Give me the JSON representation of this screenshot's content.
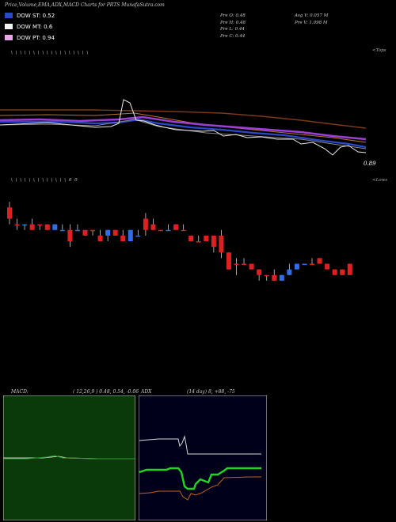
{
  "title": "Price,Volume,EMA,ADX,MACD Charts for PRTS MunafaSutra.com",
  "legend": [
    {
      "label": "DOW ST: 0.52",
      "color": "#2a49c8"
    },
    {
      "label": "DOW MT: 0.6",
      "color": "#f2f2f2"
    },
    {
      "label": "DOW PT: 0.94",
      "color": "#e9a6e6"
    }
  ],
  "ohlc": {
    "open": "Pre  O: 0.48",
    "high": "Pre  H: 0.48",
    "low": "Pre  L: 0.44",
    "close": "Pre  C: 0.44",
    "avg_volume": "Avg V: 0.057 M",
    "prev_volume": "Pre  V: 1.098  M"
  },
  "top_label": "<Tops",
  "low_label": "<Lows",
  "price_label": "0.89",
  "tops_marks": "\\  \\  \\  \\  \\  \\  \\  \\  \\  \\  \\  \\  \\  \\  \\  \\  \\  \\",
  "lows_marks": "\\  \\  \\  \\  \\  \\  \\  \\  \\  \\  \\  \\  \\  0  0",
  "macd": {
    "title": "MACD:",
    "params": "( 12,26,9 ) 0.48,  0.54,  -0.06"
  },
  "adx": {
    "title": "ADX",
    "params": "(14  day) 8,  +88,  -75"
  },
  "colors": {
    "bull": "#2f6ee8",
    "bear": "#e02020",
    "macd_bg": "#0a3a0a",
    "adx_bg": "#00001a"
  },
  "chart_data": {
    "type": "candlestick",
    "candles": [
      {
        "o": 0.52,
        "h": 0.53,
        "l": 0.49,
        "c": 0.5,
        "dir": "down"
      },
      {
        "o": 0.49,
        "h": 0.5,
        "l": 0.48,
        "c": 0.49,
        "dir": "down"
      },
      {
        "o": 0.49,
        "h": 0.49,
        "l": 0.48,
        "c": 0.49,
        "dir": "up"
      },
      {
        "o": 0.49,
        "h": 0.5,
        "l": 0.48,
        "c": 0.48,
        "dir": "down"
      },
      {
        "o": 0.49,
        "h": 0.49,
        "l": 0.48,
        "c": 0.49,
        "dir": "down"
      },
      {
        "o": 0.48,
        "h": 0.49,
        "l": 0.48,
        "c": 0.49,
        "dir": "down"
      },
      {
        "o": 0.49,
        "h": 0.49,
        "l": 0.48,
        "c": 0.48,
        "dir": "up"
      },
      {
        "o": 0.48,
        "h": 0.49,
        "l": 0.48,
        "c": 0.48,
        "dir": "up"
      },
      {
        "o": 0.48,
        "h": 0.49,
        "l": 0.45,
        "c": 0.46,
        "dir": "down"
      },
      {
        "o": 0.48,
        "h": 0.49,
        "l": 0.48,
        "c": 0.48,
        "dir": "up"
      },
      {
        "o": 0.48,
        "h": 0.48,
        "l": 0.47,
        "c": 0.47,
        "dir": "down"
      },
      {
        "o": 0.48,
        "h": 0.48,
        "l": 0.47,
        "c": 0.48,
        "dir": "down"
      },
      {
        "o": 0.47,
        "h": 0.48,
        "l": 0.46,
        "c": 0.46,
        "dir": "down"
      },
      {
        "o": 0.47,
        "h": 0.48,
        "l": 0.46,
        "c": 0.48,
        "dir": "up"
      },
      {
        "o": 0.48,
        "h": 0.48,
        "l": 0.47,
        "c": 0.47,
        "dir": "down"
      },
      {
        "o": 0.47,
        "h": 0.48,
        "l": 0.46,
        "c": 0.46,
        "dir": "down"
      },
      {
        "o": 0.46,
        "h": 0.48,
        "l": 0.46,
        "c": 0.48,
        "dir": "up"
      },
      {
        "o": 0.47,
        "h": 0.48,
        "l": 0.47,
        "c": 0.47,
        "dir": "up"
      },
      {
        "o": 0.5,
        "h": 0.51,
        "l": 0.47,
        "c": 0.48,
        "dir": "down"
      },
      {
        "o": 0.49,
        "h": 0.5,
        "l": 0.48,
        "c": 0.48,
        "dir": "down"
      },
      {
        "o": 0.48,
        "h": 0.48,
        "l": 0.48,
        "c": 0.48,
        "dir": "down"
      },
      {
        "o": 0.48,
        "h": 0.49,
        "l": 0.48,
        "c": 0.48,
        "dir": "up"
      },
      {
        "o": 0.49,
        "h": 0.49,
        "l": 0.48,
        "c": 0.48,
        "dir": "down"
      },
      {
        "o": 0.48,
        "h": 0.49,
        "l": 0.48,
        "c": 0.48,
        "dir": "down"
      },
      {
        "o": 0.47,
        "h": 0.47,
        "l": 0.46,
        "c": 0.46,
        "dir": "down"
      },
      {
        "o": 0.46,
        "h": 0.47,
        "l": 0.46,
        "c": 0.46,
        "dir": "down"
      },
      {
        "o": 0.47,
        "h": 0.47,
        "l": 0.46,
        "c": 0.46,
        "dir": "down"
      },
      {
        "o": 0.47,
        "h": 0.47,
        "l": 0.44,
        "c": 0.45,
        "dir": "down"
      },
      {
        "o": 0.47,
        "h": 0.48,
        "l": 0.43,
        "c": 0.44,
        "dir": "down"
      },
      {
        "o": 0.44,
        "h": 0.44,
        "l": 0.41,
        "c": 0.41,
        "dir": "down"
      },
      {
        "o": 0.42,
        "h": 0.43,
        "l": 0.4,
        "c": 0.42,
        "dir": "down"
      },
      {
        "o": 0.42,
        "h": 0.43,
        "l": 0.42,
        "c": 0.42,
        "dir": "down"
      },
      {
        "o": 0.42,
        "h": 0.42,
        "l": 0.41,
        "c": 0.41,
        "dir": "down"
      },
      {
        "o": 0.41,
        "h": 0.41,
        "l": 0.39,
        "c": 0.4,
        "dir": "down"
      },
      {
        "o": 0.4,
        "h": 0.4,
        "l": 0.39,
        "c": 0.4,
        "dir": "down"
      },
      {
        "o": 0.4,
        "h": 0.41,
        "l": 0.39,
        "c": 0.39,
        "dir": "down"
      },
      {
        "o": 0.39,
        "h": 0.4,
        "l": 0.39,
        "c": 0.4,
        "dir": "up"
      },
      {
        "o": 0.4,
        "h": 0.42,
        "l": 0.4,
        "c": 0.41,
        "dir": "up"
      },
      {
        "o": 0.41,
        "h": 0.42,
        "l": 0.41,
        "c": 0.42,
        "dir": "up"
      },
      {
        "o": 0.42,
        "h": 0.42,
        "l": 0.42,
        "c": 0.42,
        "dir": "up"
      },
      {
        "o": 0.42,
        "h": 0.43,
        "l": 0.42,
        "c": 0.42,
        "dir": "down"
      },
      {
        "o": 0.43,
        "h": 0.43,
        "l": 0.42,
        "c": 0.42,
        "dir": "down"
      },
      {
        "o": 0.42,
        "h": 0.42,
        "l": 0.41,
        "c": 0.41,
        "dir": "down"
      },
      {
        "o": 0.41,
        "h": 0.41,
        "l": 0.4,
        "c": 0.4,
        "dir": "down"
      },
      {
        "o": 0.41,
        "h": 0.41,
        "l": 0.4,
        "c": 0.4,
        "dir": "down"
      },
      {
        "o": 0.42,
        "h": 0.42,
        "l": 0.4,
        "c": 0.4,
        "dir": "down"
      }
    ],
    "price_range": [
      0.38,
      0.54
    ]
  }
}
